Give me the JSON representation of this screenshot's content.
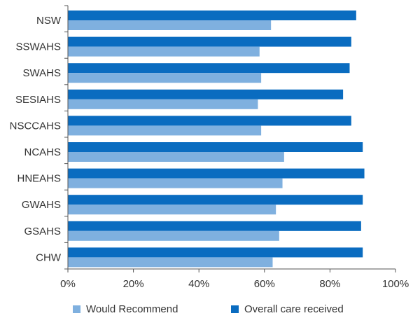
{
  "chart_data": {
    "type": "bar",
    "orientation": "horizontal",
    "categories": [
      "NSW",
      "SSWAHS",
      "SWAHS",
      "SESIAHS",
      "NSCCAHS",
      "NCAHS",
      "HNEAHS",
      "GWAHS",
      "GSAHS",
      "CHW"
    ],
    "series": [
      {
        "name": "Would Recommend",
        "color": "#7fb0df",
        "values": [
          62,
          58.5,
          59,
          58,
          59,
          66,
          65.5,
          63.5,
          64.5,
          62.5
        ]
      },
      {
        "name": "Overall care received",
        "color": "#0a6cc0",
        "values": [
          88,
          86.5,
          86,
          84,
          86.5,
          90,
          90.5,
          90,
          89.5,
          90
        ]
      }
    ],
    "xlim": [
      0,
      100
    ],
    "x_ticks": [
      "0%",
      "20%",
      "40%",
      "60%",
      "80%",
      "100%"
    ],
    "x_tick_values": [
      0,
      20,
      40,
      60,
      80,
      100
    ],
    "grid": false,
    "legend_position": "bottom"
  }
}
